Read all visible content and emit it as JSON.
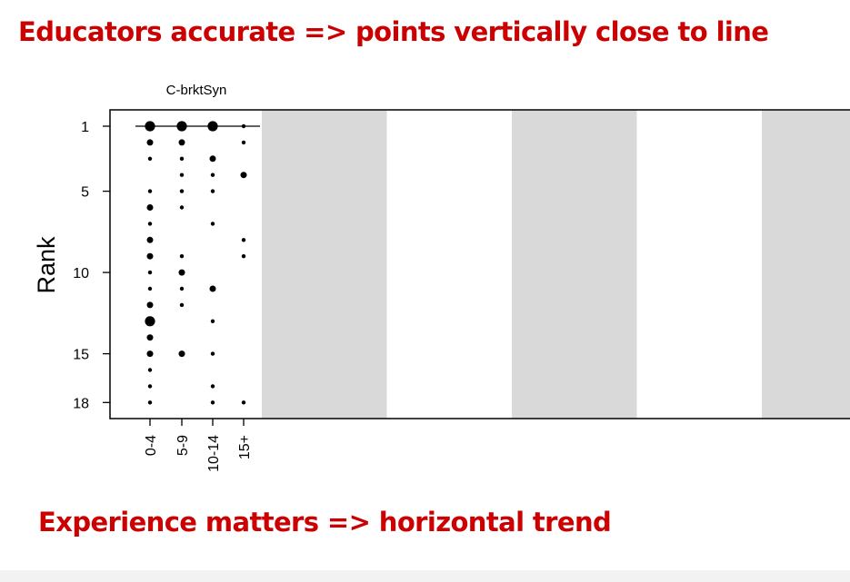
{
  "headline_top": "Educators accurate => points vertically close to line",
  "headline_bottom": "Experience matters => horizontal trend",
  "colors": {
    "headline": "#cc0000",
    "shade": "#d9d9d9",
    "points": "#000000",
    "axis": "#000000"
  },
  "chart_data": {
    "type": "scatter",
    "title": "C-brktSyn",
    "xlabel": "",
    "ylabel": "Rank",
    "categories": [
      "0-4",
      "5-9",
      "10-14",
      "15+"
    ],
    "y_ticks": [
      1,
      5,
      10,
      15,
      18
    ],
    "ylim": [
      1,
      18
    ],
    "y_reversed": true,
    "reference_rank": 1,
    "grid": false,
    "series": [
      {
        "values": [
          {
            "rank": 1,
            "count": 3
          },
          {
            "rank": 2,
            "count": 2
          },
          {
            "rank": 3,
            "count": 1
          },
          {
            "rank": 5,
            "count": 1
          },
          {
            "rank": 6,
            "count": 2
          },
          {
            "rank": 7,
            "count": 1
          },
          {
            "rank": 8,
            "count": 2
          },
          {
            "rank": 9,
            "count": 2
          },
          {
            "rank": 10,
            "count": 1
          },
          {
            "rank": 11,
            "count": 1
          },
          {
            "rank": 12,
            "count": 2
          },
          {
            "rank": 13,
            "count": 3
          },
          {
            "rank": 14,
            "count": 2
          },
          {
            "rank": 15,
            "count": 2
          },
          {
            "rank": 16,
            "count": 1
          },
          {
            "rank": 17,
            "count": 1
          },
          {
            "rank": 18,
            "count": 1
          }
        ]
      },
      {
        "values": [
          {
            "rank": 1,
            "count": 3
          },
          {
            "rank": 2,
            "count": 2
          },
          {
            "rank": 3,
            "count": 1
          },
          {
            "rank": 4,
            "count": 1
          },
          {
            "rank": 5,
            "count": 1
          },
          {
            "rank": 6,
            "count": 1
          },
          {
            "rank": 9,
            "count": 1
          },
          {
            "rank": 10,
            "count": 2
          },
          {
            "rank": 11,
            "count": 1
          },
          {
            "rank": 12,
            "count": 1
          },
          {
            "rank": 15,
            "count": 2
          }
        ]
      },
      {
        "values": [
          {
            "rank": 1,
            "count": 3
          },
          {
            "rank": 3,
            "count": 2
          },
          {
            "rank": 4,
            "count": 1
          },
          {
            "rank": 5,
            "count": 1
          },
          {
            "rank": 7,
            "count": 1
          },
          {
            "rank": 11,
            "count": 2
          },
          {
            "rank": 13,
            "count": 1
          },
          {
            "rank": 15,
            "count": 1
          },
          {
            "rank": 17,
            "count": 1
          },
          {
            "rank": 18,
            "count": 1
          }
        ]
      },
      {
        "values": [
          {
            "rank": 1,
            "count": 1
          },
          {
            "rank": 2,
            "count": 1
          },
          {
            "rank": 4,
            "count": 2
          },
          {
            "rank": 8,
            "count": 1
          },
          {
            "rank": 9,
            "count": 1
          },
          {
            "rank": 18,
            "count": 1
          }
        ]
      }
    ]
  }
}
